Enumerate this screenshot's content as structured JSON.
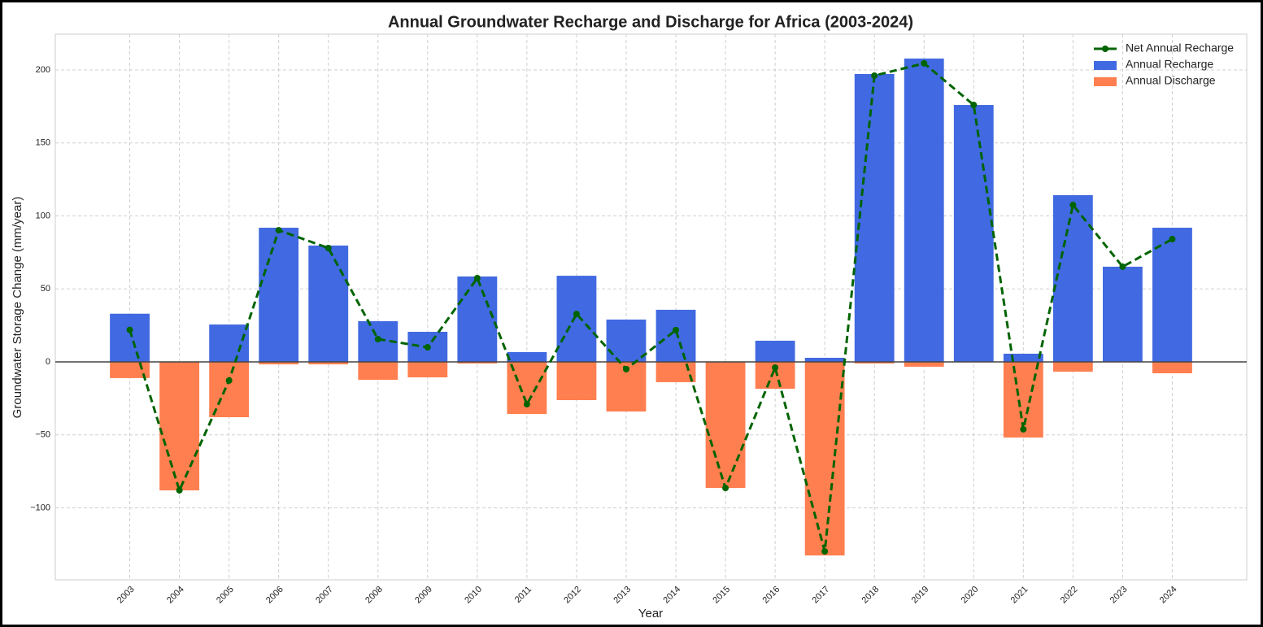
{
  "chart_data": {
    "type": "bar",
    "title": "Annual Groundwater Recharge and Discharge for Africa (2003-2024)",
    "xlabel": "Year",
    "ylabel": "Groundwater Storage Change (mm/year)",
    "x": [
      2003,
      2004,
      2005,
      2006,
      2007,
      2008,
      2009,
      2010,
      2011,
      2012,
      2013,
      2014,
      2015,
      2016,
      2017,
      2018,
      2019,
      2020,
      2021,
      2022,
      2023,
      2024
    ],
    "series": [
      {
        "name": "Net Annual Recharge",
        "type": "line",
        "color": "#006400",
        "values": [
          21.9,
          -88,
          -12.8,
          90.2,
          78,
          15.6,
          10,
          57.4,
          -29,
          32.8,
          -5,
          21.8,
          -86.4,
          -3.9,
          -129.8,
          196.1,
          204.5,
          176,
          -46.2,
          107.5,
          65.2,
          84.1
        ]
      },
      {
        "name": "Annual Recharge",
        "type": "bar",
        "color": "#4169e1",
        "values": [
          33,
          0,
          25.6,
          91.9,
          79.7,
          27.9,
          20.6,
          58.5,
          6.7,
          59,
          29,
          35.7,
          0,
          14.5,
          2.8,
          197.2,
          207.8,
          176,
          5.6,
          114.2,
          65.2,
          91.9
        ]
      },
      {
        "name": "Annual Discharge",
        "type": "bar",
        "color": "#ff7f50",
        "values": [
          -11.1,
          -88,
          -37.9,
          -1.7,
          -1.7,
          -12.3,
          -10.6,
          -1.1,
          -35.7,
          -26.2,
          -34,
          -13.9,
          -86.4,
          -18.4,
          -132.6,
          -1.1,
          -3.3,
          0,
          -51.8,
          -6.7,
          0,
          -7.8
        ]
      }
    ],
    "xlim": [
      2001.5,
      2025.5
    ],
    "xticks": [
      2003,
      2004,
      2005,
      2006,
      2007,
      2008,
      2009,
      2010,
      2011,
      2012,
      2013,
      2014,
      2015,
      2016,
      2017,
      2018,
      2019,
      2020,
      2021,
      2022,
      2023,
      2024
    ],
    "ylim": [
      -149.3,
      224.5
    ],
    "yticks": [
      {
        "value": -100,
        "label": "−100"
      },
      {
        "value": -50,
        "label": "−50"
      },
      0,
      50,
      100,
      150,
      200
    ],
    "hline": 0,
    "grid": true,
    "legend": "upper right"
  }
}
